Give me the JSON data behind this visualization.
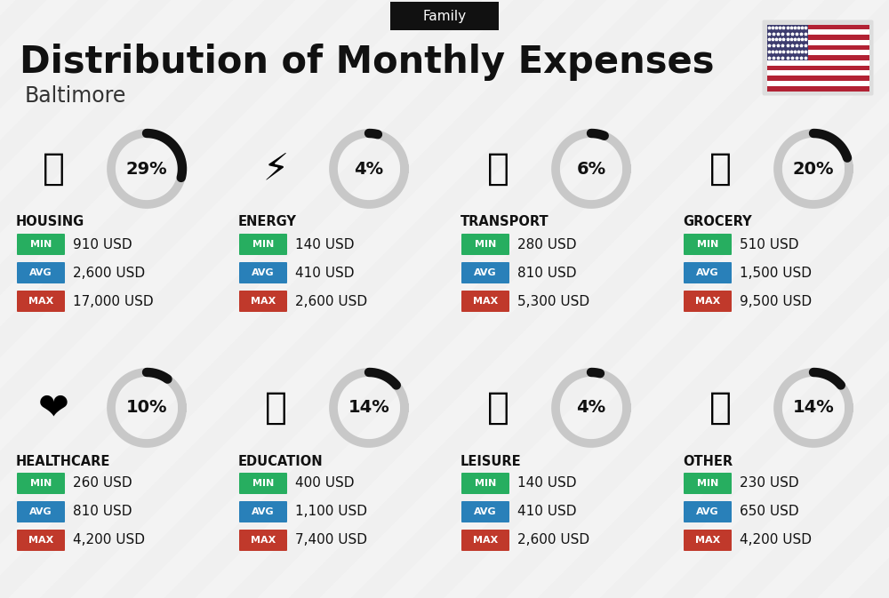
{
  "title": "Distribution of Monthly Expenses",
  "subtitle": "Baltimore",
  "header_label": "Family",
  "bg_color": "#f0f0f0",
  "categories": [
    {
      "name": "HOUSING",
      "percent": 29,
      "min_val": "910 USD",
      "avg_val": "2,600 USD",
      "max_val": "17,000 USD",
      "icon": "🏢",
      "row": 0,
      "col": 0
    },
    {
      "name": "ENERGY",
      "percent": 4,
      "min_val": "140 USD",
      "avg_val": "410 USD",
      "max_val": "2,600 USD",
      "icon": "⚡",
      "row": 0,
      "col": 1
    },
    {
      "name": "TRANSPORT",
      "percent": 6,
      "min_val": "280 USD",
      "avg_val": "810 USD",
      "max_val": "5,300 USD",
      "icon": "🚌",
      "row": 0,
      "col": 2
    },
    {
      "name": "GROCERY",
      "percent": 20,
      "min_val": "510 USD",
      "avg_val": "1,500 USD",
      "max_val": "9,500 USD",
      "icon": "🛒",
      "row": 0,
      "col": 3
    },
    {
      "name": "HEALTHCARE",
      "percent": 10,
      "min_val": "260 USD",
      "avg_val": "810 USD",
      "max_val": "4,200 USD",
      "icon": "❤",
      "row": 1,
      "col": 0
    },
    {
      "name": "EDUCATION",
      "percent": 14,
      "min_val": "400 USD",
      "avg_val": "1,100 USD",
      "max_val": "7,400 USD",
      "icon": "🎓",
      "row": 1,
      "col": 1
    },
    {
      "name": "LEISURE",
      "percent": 4,
      "min_val": "140 USD",
      "avg_val": "410 USD",
      "max_val": "2,600 USD",
      "icon": "🛍",
      "row": 1,
      "col": 2
    },
    {
      "name": "OTHER",
      "percent": 14,
      "min_val": "230 USD",
      "avg_val": "650 USD",
      "max_val": "4,200 USD",
      "icon": "👜",
      "row": 1,
      "col": 3
    }
  ],
  "min_color": "#27ae60",
  "avg_color": "#2980b9",
  "max_color": "#c0392b",
  "arc_filled_color": "#111111",
  "arc_empty_color": "#c8c8c8",
  "title_color": "#111111",
  "subtitle_color": "#333333",
  "category_name_color": "#111111",
  "fig_w": 10.0,
  "fig_h": 6.73,
  "dpi": 100
}
